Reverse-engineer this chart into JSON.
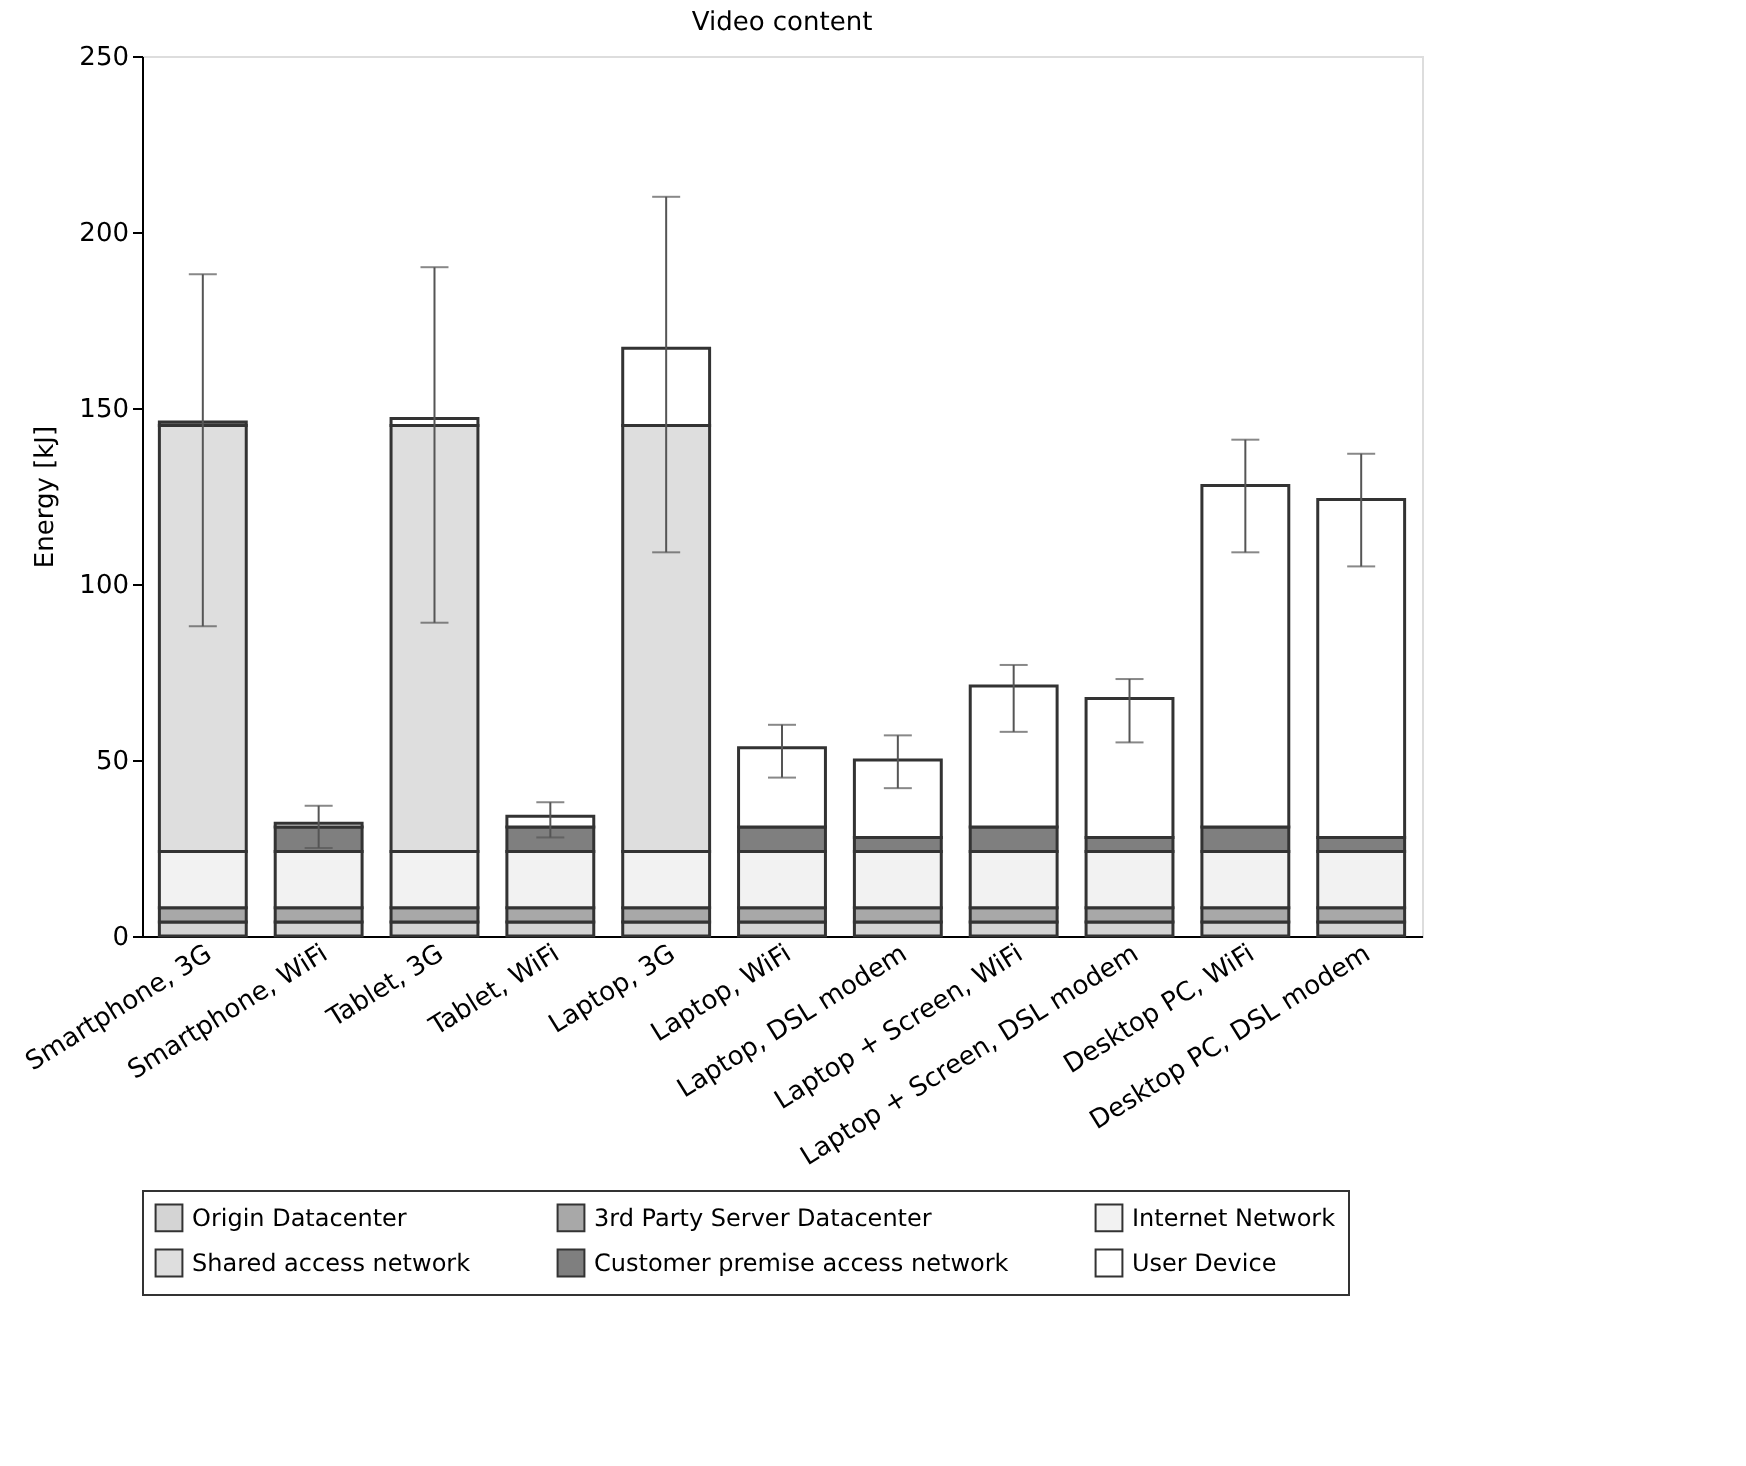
{
  "chart_data": {
    "type": "bar",
    "stacked": true,
    "title": "Video content",
    "ylabel": "Energy  [kJ]",
    "categories": [
      "Smartphone, 3G",
      "Smartphone, WiFi",
      "Tablet, 3G",
      "Tablet, WiFi",
      "Laptop, 3G",
      "Laptop, WiFi",
      "Laptop, DSL modem",
      "Laptop + Screen, WiFi",
      "Laptop + Screen, DSL modem",
      "Desktop PC, WiFi",
      "Desktop PC, DSL modem"
    ],
    "series": [
      {
        "name": "Origin Datacenter",
        "color": "#d4d4d4",
        "values": [
          4,
          4,
          4,
          4,
          4,
          4,
          4,
          4,
          4,
          4,
          4
        ]
      },
      {
        "name": "3rd Party Server Datacenter",
        "color": "#a8a8a8",
        "values": [
          4,
          4,
          4,
          4,
          4,
          4,
          4,
          4,
          4,
          4,
          4
        ]
      },
      {
        "name": "Internet Network",
        "color": "#f2f2f2",
        "values": [
          16,
          16,
          16,
          16,
          16,
          16,
          16,
          16,
          16,
          16,
          16
        ]
      },
      {
        "name": "Shared access network",
        "color": "#dedede",
        "values": [
          121,
          null,
          121,
          null,
          121,
          null,
          null,
          null,
          null,
          null,
          null
        ]
      },
      {
        "name": "Customer premise access network",
        "color": "#7f7f7f",
        "values": [
          1,
          7,
          null,
          7,
          null,
          7,
          4,
          7,
          4,
          7,
          4
        ],
        "errors": [
          [
            88,
            188
          ],
          null,
          null,
          null,
          null,
          null,
          null,
          null,
          null,
          null,
          null
        ]
      },
      {
        "name": "User Device",
        "color": "#ffffff",
        "values": [
          null,
          1,
          2,
          3,
          22,
          22.5,
          22,
          40,
          39.5,
          97,
          96
        ],
        "errors": [
          null,
          [
            25,
            37
          ],
          [
            89,
            190
          ],
          [
            28,
            38
          ],
          [
            109,
            210
          ],
          [
            45,
            60
          ],
          [
            42,
            57
          ],
          [
            58,
            77
          ],
          [
            55,
            73
          ],
          [
            109,
            141
          ],
          [
            105,
            137
          ]
        ]
      }
    ],
    "ylim": [
      0,
      250
    ],
    "yticks": [
      0,
      50,
      100,
      150,
      200,
      250
    ],
    "grid": false,
    "legend": "bottom"
  }
}
